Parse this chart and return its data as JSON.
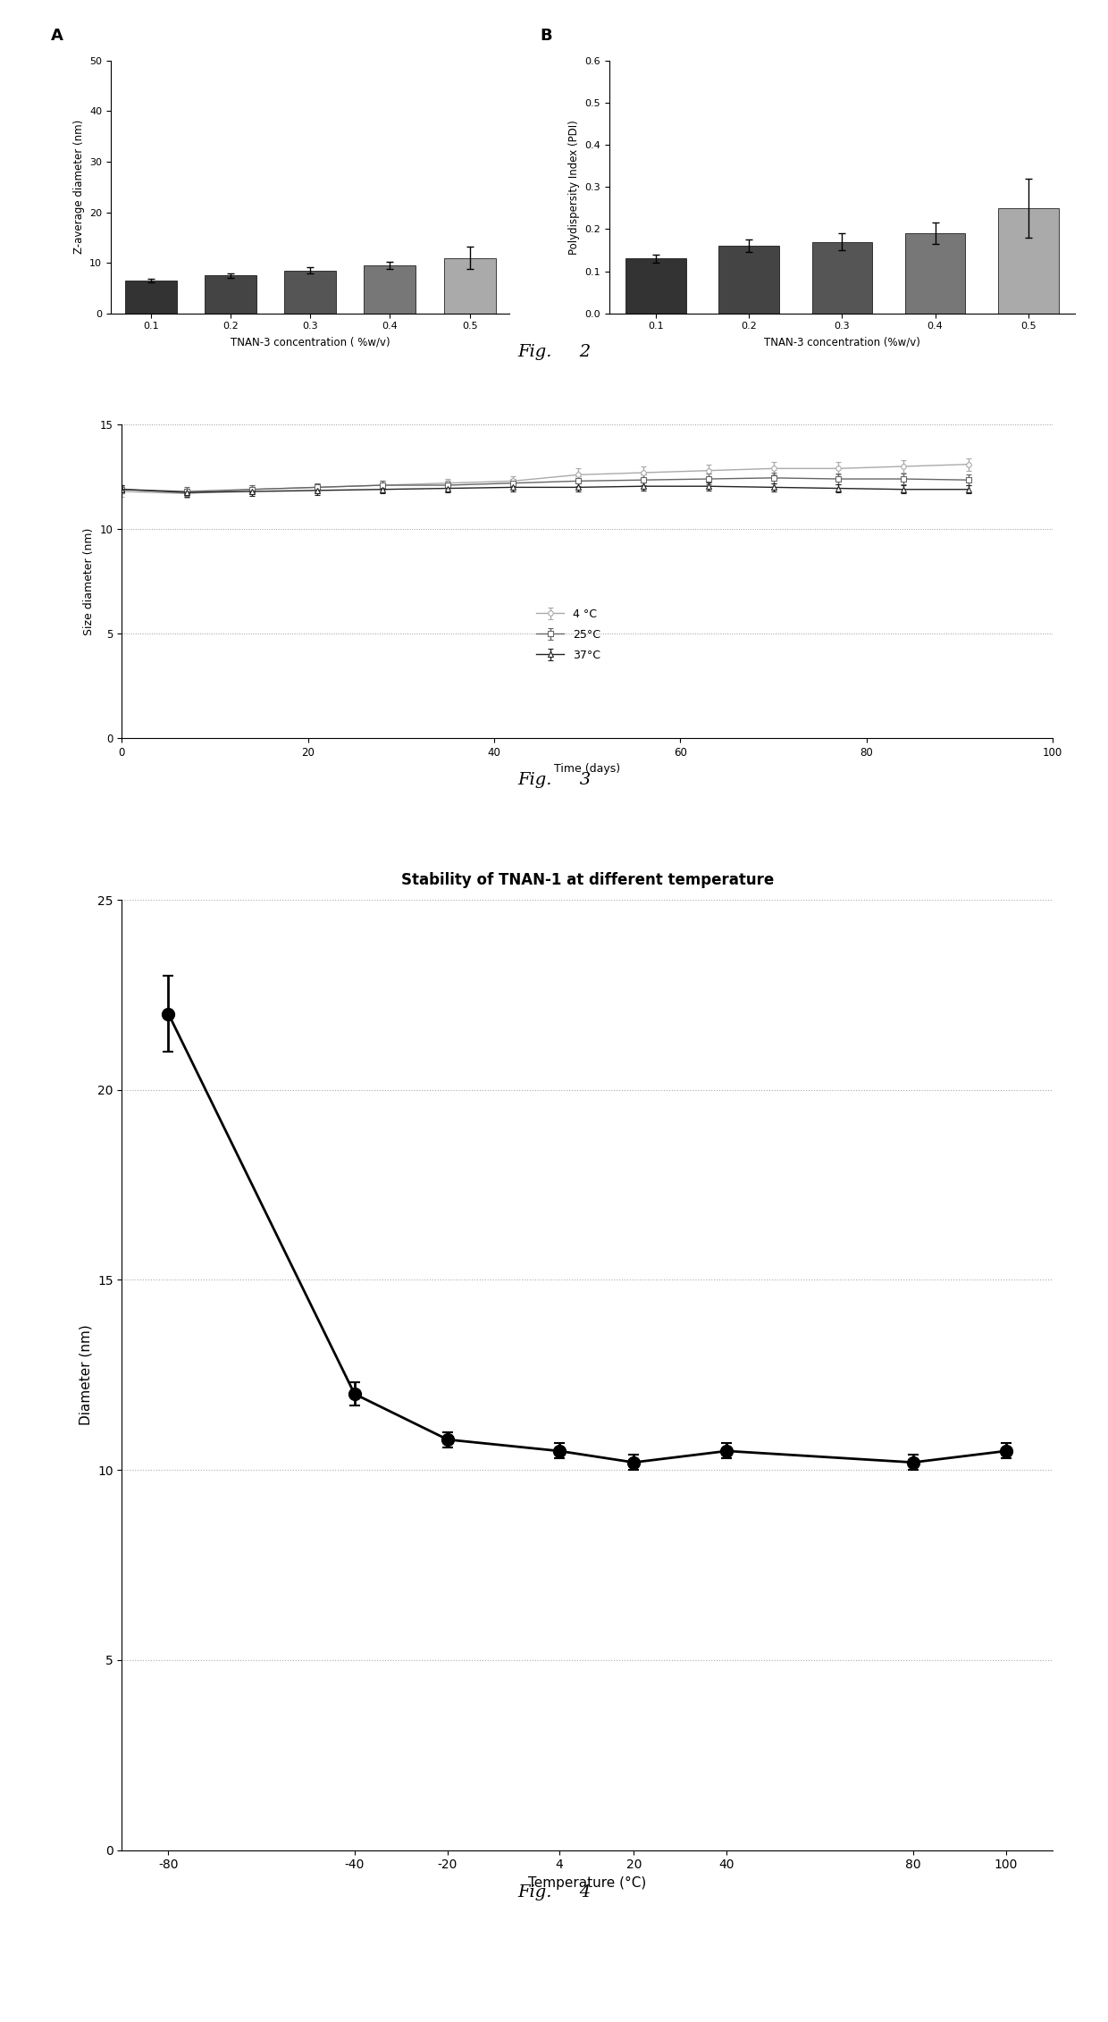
{
  "fig2_A_categories": [
    "0.1",
    "0.2",
    "0.3",
    "0.4",
    "0.5"
  ],
  "fig2_A_values": [
    6.5,
    7.5,
    8.5,
    9.5,
    11.0
  ],
  "fig2_A_errors": [
    0.4,
    0.5,
    0.6,
    0.7,
    2.2
  ],
  "fig2_A_hatches": [
    "...",
    "...",
    "...",
    "...",
    "..."
  ],
  "fig2_A_colors": [
    "#333333",
    "#444444",
    "#555555",
    "#777777",
    "#aaaaaa"
  ],
  "fig2_A_ylabel": "Z-average diameter (nm)",
  "fig2_A_xlabel": "TNAN-3 concentration ( %w/v)",
  "fig2_A_ylim": [
    0,
    50
  ],
  "fig2_A_yticks": [
    0,
    10,
    20,
    30,
    40,
    50
  ],
  "fig2_A_label": "A",
  "fig2_B_categories": [
    "0.1",
    "0.2",
    "0.3",
    "0.4",
    "0.5"
  ],
  "fig2_B_values": [
    0.13,
    0.16,
    0.17,
    0.19,
    0.25
  ],
  "fig2_B_errors": [
    0.01,
    0.015,
    0.02,
    0.025,
    0.07
  ],
  "fig2_B_colors": [
    "#333333",
    "#444444",
    "#555555",
    "#777777",
    "#aaaaaa"
  ],
  "fig2_B_ylabel": "Polydispersity Index (PDI)",
  "fig2_B_xlabel": "TNAN-3 concentration (%w/v)",
  "fig2_B_ylim": [
    0,
    0.6
  ],
  "fig2_B_yticks": [
    0.0,
    0.1,
    0.2,
    0.3,
    0.4,
    0.5,
    0.6
  ],
  "fig2_B_label": "B",
  "fig2_caption": "Fig.     2",
  "fig3_time": [
    0,
    7,
    14,
    21,
    28,
    35,
    42,
    49,
    56,
    63,
    70,
    77,
    84,
    91
  ],
  "fig3_4C": [
    11.8,
    11.7,
    11.9,
    12.0,
    12.1,
    12.2,
    12.3,
    12.6,
    12.7,
    12.8,
    12.9,
    12.9,
    13.0,
    13.1
  ],
  "fig3_25C": [
    11.9,
    11.8,
    11.9,
    12.0,
    12.1,
    12.1,
    12.2,
    12.3,
    12.35,
    12.4,
    12.45,
    12.4,
    12.4,
    12.35
  ],
  "fig3_37C": [
    11.9,
    11.75,
    11.8,
    11.85,
    11.9,
    11.95,
    12.0,
    12.0,
    12.05,
    12.05,
    12.0,
    11.95,
    11.9,
    11.9
  ],
  "fig3_4C_err": [
    0.25,
    0.2,
    0.2,
    0.2,
    0.2,
    0.2,
    0.25,
    0.3,
    0.3,
    0.3,
    0.3,
    0.3,
    0.3,
    0.3
  ],
  "fig3_25C_err": [
    0.2,
    0.2,
    0.2,
    0.2,
    0.2,
    0.2,
    0.2,
    0.25,
    0.25,
    0.25,
    0.25,
    0.25,
    0.25,
    0.25
  ],
  "fig3_37C_err": [
    0.2,
    0.2,
    0.2,
    0.2,
    0.2,
    0.2,
    0.2,
    0.2,
    0.2,
    0.2,
    0.2,
    0.2,
    0.2,
    0.2
  ],
  "fig3_ylabel": "Size diameter (nm)",
  "fig3_xlabel": "Time (days)",
  "fig3_ylim": [
    0,
    15
  ],
  "fig3_xlim": [
    0,
    100
  ],
  "fig3_yticks": [
    0,
    5,
    10,
    15
  ],
  "fig3_xticks": [
    0,
    20,
    40,
    60,
    80,
    100
  ],
  "fig3_legend": [
    "4 °C",
    "25°C",
    "37°C"
  ],
  "fig3_caption": "Fig.     3",
  "fig4_temp": [
    -80,
    -40,
    -20,
    4,
    20,
    40,
    80,
    100
  ],
  "fig4_diameter": [
    22.0,
    12.0,
    10.8,
    10.5,
    10.2,
    10.5,
    10.2,
    10.5
  ],
  "fig4_errors": [
    1.0,
    0.3,
    0.2,
    0.2,
    0.2,
    0.2,
    0.2,
    0.2
  ],
  "fig4_ylabel": "Diameter (nm)",
  "fig4_xlabel": "Temperature (°C)",
  "fig4_title": "Stability of TNAN-1 at different temperature",
  "fig4_ylim": [
    0,
    25
  ],
  "fig4_xlim": [
    -90,
    110
  ],
  "fig4_yticks": [
    0,
    5,
    10,
    15,
    20,
    25
  ],
  "fig4_xticks": [
    -80,
    -40,
    -20,
    4,
    20,
    40,
    80,
    100
  ],
  "fig4_caption": "Fig.     4"
}
